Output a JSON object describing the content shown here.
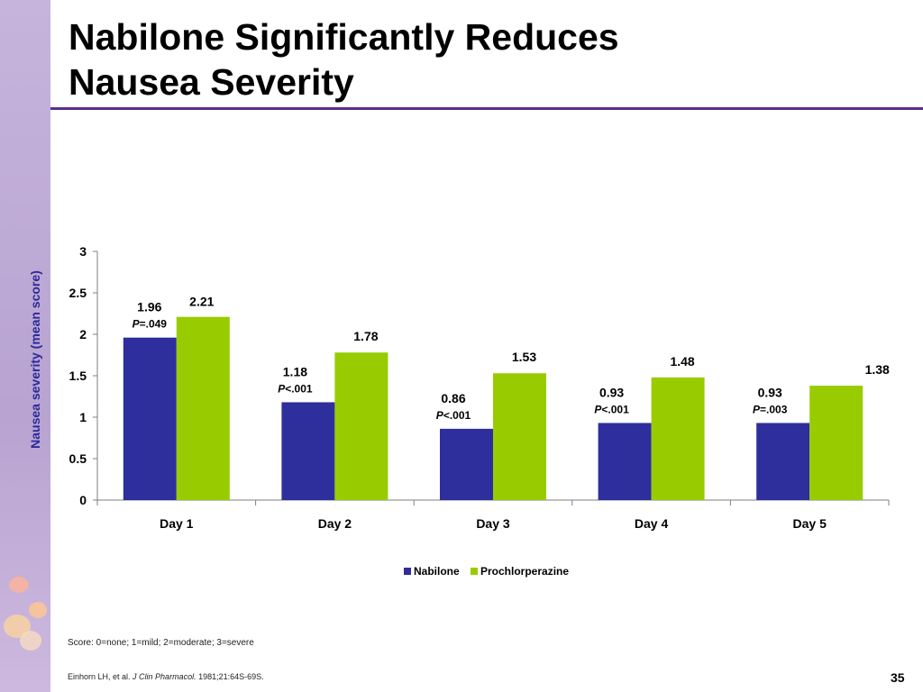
{
  "slide": {
    "title": "Nabilone Significantly Reduces\nNausea Severity",
    "footnote": "Score: 0=none; 1=mild; 2=moderate; 3=severe",
    "citation": {
      "authors": "Einhorn LH, et al. ",
      "journal": "J Clin Pharmacol.",
      "details": " 1981;21:64S-69S."
    },
    "page_number": "35"
  },
  "chart_data": {
    "type": "bar",
    "title": "",
    "xlabel": "",
    "ylabel": "Nausea severity (mean score)",
    "ylim": [
      0,
      3
    ],
    "yticks": [
      0,
      0.5,
      1,
      1.5,
      2,
      2.5,
      3
    ],
    "categories": [
      "Day 1",
      "Day 2",
      "Day 3",
      "Day 4",
      "Day 5"
    ],
    "series": [
      {
        "name": "Nabilone",
        "color": "#2e2e9c",
        "values": [
          1.96,
          1.18,
          0.86,
          0.93,
          0.93
        ]
      },
      {
        "name": "Prochlorperazine",
        "color": "#99cc00",
        "values": [
          2.21,
          1.78,
          1.53,
          1.48,
          1.38
        ]
      }
    ],
    "p_values": [
      {
        "prefix": "P",
        "rest": "=.049"
      },
      {
        "prefix": "P",
        "rest": "<.001"
      },
      {
        "prefix": "P",
        "rest": "<.001"
      },
      {
        "prefix": "P",
        "rest": "<.001"
      },
      {
        "prefix": "P",
        "rest": "=.003"
      }
    ],
    "legend": "bottom-center",
    "grid": false
  }
}
